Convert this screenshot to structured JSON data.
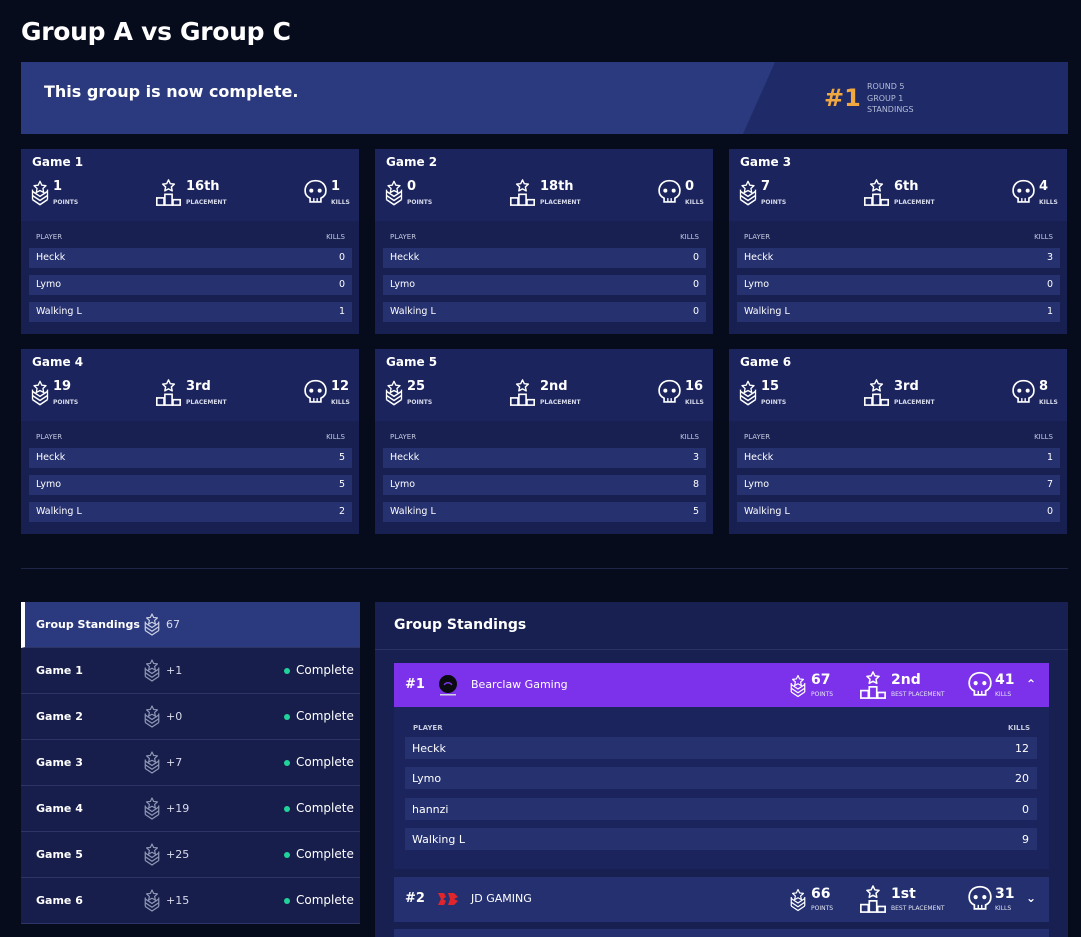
{
  "page": {
    "title": "Group A vs Group C"
  },
  "banner": {
    "message": "This group is now complete.",
    "rank": "#1",
    "round": "ROUND 5",
    "group": "GROUP 1",
    "standings": "STANDINGS"
  },
  "labels": {
    "points": "POINTS",
    "placement": "PLACEMENT",
    "kills": "KILLS",
    "player": "PLAYER",
    "kills_col": "KILLS",
    "best_placement": "BEST PLACEMENT"
  },
  "games": [
    {
      "title": "Game 1",
      "points": "1",
      "placement": "16th",
      "kills": "1",
      "players": [
        {
          "name": "Heckk",
          "kills": "0"
        },
        {
          "name": "Lymo",
          "kills": "0"
        },
        {
          "name": "Walking L",
          "kills": "1"
        }
      ]
    },
    {
      "title": "Game 2",
      "points": "0",
      "placement": "18th",
      "kills": "0",
      "players": [
        {
          "name": "Heckk",
          "kills": "0"
        },
        {
          "name": "Lymo",
          "kills": "0"
        },
        {
          "name": "Walking L",
          "kills": "0"
        }
      ]
    },
    {
      "title": "Game 3",
      "points": "7",
      "placement": "6th",
      "kills": "4",
      "players": [
        {
          "name": "Heckk",
          "kills": "3"
        },
        {
          "name": "Lymo",
          "kills": "0"
        },
        {
          "name": "Walking L",
          "kills": "1"
        }
      ]
    },
    {
      "title": "Game 4",
      "points": "19",
      "placement": "3rd",
      "kills": "12",
      "players": [
        {
          "name": "Heckk",
          "kills": "5"
        },
        {
          "name": "Lymo",
          "kills": "5"
        },
        {
          "name": "Walking L",
          "kills": "2"
        }
      ]
    },
    {
      "title": "Game 5",
      "points": "25",
      "placement": "2nd",
      "kills": "16",
      "players": [
        {
          "name": "Heckk",
          "kills": "3"
        },
        {
          "name": "Lymo",
          "kills": "8"
        },
        {
          "name": "Walking L",
          "kills": "5"
        }
      ]
    },
    {
      "title": "Game 6",
      "points": "15",
      "placement": "3rd",
      "kills": "8",
      "players": [
        {
          "name": "Heckk",
          "kills": "1"
        },
        {
          "name": "Lymo",
          "kills": "7"
        },
        {
          "name": "Walking L",
          "kills": "0"
        }
      ]
    }
  ],
  "sidebar": {
    "header": {
      "label": "Group Standings",
      "points": "67"
    },
    "items": [
      {
        "label": "Game 1",
        "points": "+1",
        "status": "Complete"
      },
      {
        "label": "Game 2",
        "points": "+0",
        "status": "Complete"
      },
      {
        "label": "Game 3",
        "points": "+7",
        "status": "Complete"
      },
      {
        "label": "Game 4",
        "points": "+19",
        "status": "Complete"
      },
      {
        "label": "Game 5",
        "points": "+25",
        "status": "Complete"
      },
      {
        "label": "Game 6",
        "points": "+15",
        "status": "Complete"
      }
    ]
  },
  "standings": {
    "title": "Group Standings",
    "teams": [
      {
        "rank": "#1",
        "name": "Bearclaw Gaming",
        "points": "67",
        "best_placement": "2nd",
        "kills": "41",
        "caret": "⌃",
        "players": [
          {
            "name": "Heckk",
            "kills": "12"
          },
          {
            "name": "Lymo",
            "kills": "20"
          },
          {
            "name": "hannzi",
            "kills": "0"
          },
          {
            "name": "Walking L",
            "kills": "9"
          }
        ]
      },
      {
        "rank": "#2",
        "name": "JD GAMING",
        "points": "66",
        "best_placement": "1st",
        "kills": "31",
        "caret": "⌄"
      }
    ]
  },
  "colors": {
    "accent": "#f2a840",
    "team_highlight": "#7c32ea",
    "status_dot": "#21d39a",
    "banner": "#2b3a7e"
  }
}
